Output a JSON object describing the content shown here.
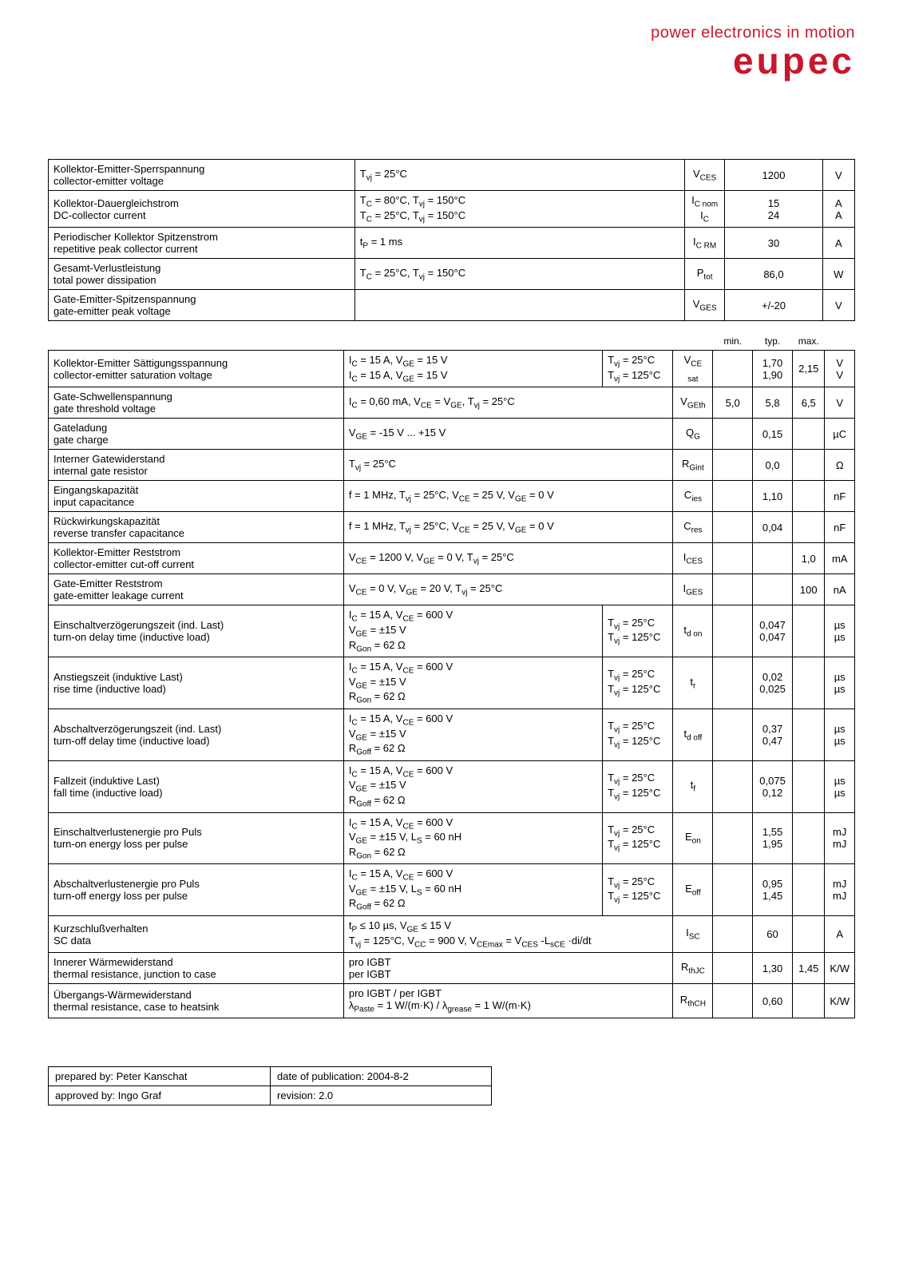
{
  "logo": {
    "line1": "power electronics in motion",
    "line2": "eupec"
  },
  "table1": [
    {
      "p_de": "Kollektor-Emitter-Sperrspannung",
      "p_en": "collector-emitter voltage",
      "cond": "T_vj = 25°C",
      "sym": "V_CES",
      "val": "1200",
      "unit": "V"
    },
    {
      "p_de": "Kollektor-Dauergleichstrom",
      "p_en": "DC-collector current",
      "cond": "T_C = 80°C, T_vj = 150°C\nT_C = 25°C, T_vj = 150°C",
      "sym": "I_C nom\nI_C",
      "val": "15\n24",
      "unit": "A\nA"
    },
    {
      "p_de": "Periodischer Kollektor Spitzenstrom",
      "p_en": "repetitive peak collector current",
      "cond": "t_P = 1 ms",
      "sym": "I_C RM",
      "val": "30",
      "unit": "A"
    },
    {
      "p_de": "Gesamt-Verlustleistung",
      "p_en": "total power dissipation",
      "cond": "T_C = 25°C, T_vj = 150°C",
      "sym": "P_tot",
      "val": "86,0",
      "unit": "W"
    },
    {
      "p_de": "Gate-Emitter-Spitzenspannung",
      "p_en": "gate-emitter peak voltage",
      "cond": "",
      "sym": "V_GES",
      "val": "+/-20",
      "unit": "V"
    }
  ],
  "table2_header": {
    "min": "min.",
    "typ": "typ.",
    "max": "max."
  },
  "table2": [
    {
      "p_de": "Kollektor-Emitter Sättigungsspannung",
      "p_en": "collector-emitter saturation voltage",
      "cond": "I_C = 15 A, V_GE = 15 V\nI_C = 15 A, V_GE = 15 V",
      "tcond": "T_vj = 25°C\nT_vj = 125°C",
      "sym": "V_CE sat",
      "min": "",
      "typ": "1,70\n1,90",
      "max": "2,15",
      "unit": "V\nV"
    },
    {
      "p_de": "Gate-Schwellenspannung",
      "p_en": "gate threshold voltage",
      "cond": "I_C = 0,60 mA, V_CE = V_GE, T_vj = 25°C",
      "tcond": "",
      "sym": "V_GEth",
      "min": "5,0",
      "typ": "5,8",
      "max": "6,5",
      "unit": "V"
    },
    {
      "p_de": "Gateladung",
      "p_en": "gate charge",
      "cond": "V_GE = -15 V ... +15 V",
      "tcond": "",
      "sym": "Q_G",
      "min": "",
      "typ": "0,15",
      "max": "",
      "unit": "µC"
    },
    {
      "p_de": "Interner Gatewiderstand",
      "p_en": "internal gate resistor",
      "cond": "T_vj = 25°C",
      "tcond": "",
      "sym": "R_Gint",
      "min": "",
      "typ": "0,0",
      "max": "",
      "unit": "Ω"
    },
    {
      "p_de": "Eingangskapazität",
      "p_en": "input capacitance",
      "cond": "f = 1 MHz, T_vj = 25°C, V_CE = 25 V, V_GE = 0 V",
      "tcond": "",
      "sym": "C_ies",
      "min": "",
      "typ": "1,10",
      "max": "",
      "unit": "nF"
    },
    {
      "p_de": "Rückwirkungskapazität",
      "p_en": "reverse transfer capacitance",
      "cond": "f = 1 MHz, T_vj = 25°C, V_CE = 25 V, V_GE = 0 V",
      "tcond": "",
      "sym": "C_res",
      "min": "",
      "typ": "0,04",
      "max": "",
      "unit": "nF"
    },
    {
      "p_de": "Kollektor-Emitter Reststrom",
      "p_en": "collector-emitter cut-off current",
      "cond": "V_CE = 1200 V, V_GE = 0 V, T_vj = 25°C",
      "tcond": "",
      "sym": "I_CES",
      "min": "",
      "typ": "",
      "max": "1,0",
      "unit": "mA"
    },
    {
      "p_de": "Gate-Emitter Reststrom",
      "p_en": "gate-emitter leakage current",
      "cond": "V_CE = 0 V, V_GE = 20 V, T_vj = 25°C",
      "tcond": "",
      "sym": "I_GES",
      "min": "",
      "typ": "",
      "max": "100",
      "unit": "nA"
    },
    {
      "p_de": "Einschaltverzögerungszeit (ind. Last)",
      "p_en": "turn-on delay time (inductive load)",
      "cond": "I_C = 15 A, V_CE = 600 V\nV_GE = ±15 V\nR_Gon = 62 Ω",
      "tcond": "T_vj = 25°C\nT_vj = 125°C",
      "sym": "t_d on",
      "min": "",
      "typ": "0,047\n0,047",
      "max": "",
      "unit": "µs\nµs"
    },
    {
      "p_de": "Anstiegszeit (induktive Last)",
      "p_en": "rise time (inductive load)",
      "cond": "I_C = 15 A, V_CE = 600 V\nV_GE = ±15 V\nR_Gon = 62 Ω",
      "tcond": "T_vj = 25°C\nT_vj = 125°C",
      "sym": "t_r",
      "min": "",
      "typ": "0,02\n0,025",
      "max": "",
      "unit": "µs\nµs"
    },
    {
      "p_de": "Abschaltverzögerungszeit (ind. Last)",
      "p_en": "turn-off delay time (inductive load)",
      "cond": "I_C = 15 A, V_CE = 600 V\nV_GE = ±15 V\nR_Goff = 62 Ω",
      "tcond": "T_vj = 25°C\nT_vj = 125°C",
      "sym": "t_d off",
      "min": "",
      "typ": "0,37\n0,47",
      "max": "",
      "unit": "µs\nµs"
    },
    {
      "p_de": "Fallzeit (induktive Last)",
      "p_en": "fall time (inductive load)",
      "cond": "I_C = 15 A, V_CE = 600 V\nV_GE = ±15 V\nR_Goff = 62 Ω",
      "tcond": "T_vj = 25°C\nT_vj = 125°C",
      "sym": "t_f",
      "min": "",
      "typ": "0,075\n0,12",
      "max": "",
      "unit": "µs\nµs"
    },
    {
      "p_de": "Einschaltverlustenergie pro Puls",
      "p_en": "turn-on energy loss per pulse",
      "cond": "I_C = 15 A, V_CE = 600 V\nV_GE = ±15 V, L_S = 60 nH\nR_Gon = 62 Ω",
      "tcond": "T_vj = 25°C\nT_vj = 125°C",
      "sym": "E_on",
      "min": "",
      "typ": "1,55\n1,95",
      "max": "",
      "unit": "mJ\nmJ"
    },
    {
      "p_de": "Abschaltverlustenergie pro Puls",
      "p_en": "turn-off energy loss per pulse",
      "cond": "I_C = 15 A, V_CE = 600 V\nV_GE = ±15 V, L_S = 60 nH\nR_Goff = 62 Ω",
      "tcond": "T_vj = 25°C\nT_vj = 125°C",
      "sym": "E_off",
      "min": "",
      "typ": "0,95\n1,45",
      "max": "",
      "unit": "mJ\nmJ"
    },
    {
      "p_de": "Kurzschlußverhalten",
      "p_en": "SC data",
      "cond": "t_P ≤ 10 µs, V_GE ≤ 15 V\nT_vj = 125°C, V_CC = 900 V, V_CEmax = V_CES -L_sCE ·di/dt",
      "tcond": "",
      "sym": "I_SC",
      "min": "",
      "typ": "60",
      "max": "",
      "unit": "A"
    },
    {
      "p_de": "Innerer Wärmewiderstand",
      "p_en": "thermal resistance, junction to case",
      "cond": "pro IGBT\nper IGBT",
      "tcond": "",
      "sym": "R_thJC",
      "min": "",
      "typ": "1,30",
      "max": "1,45",
      "unit": "K/W"
    },
    {
      "p_de": "Übergangs-Wärmewiderstand",
      "p_en": "thermal resistance, case to heatsink",
      "cond": "pro IGBT / per IGBT\nλ_Paste = 1 W/(m·K)   /   λ_grease = 1 W/(m·K)",
      "tcond": "",
      "sym": "R_thCH",
      "min": "",
      "typ": "0,60",
      "max": "",
      "unit": "K/W"
    }
  ],
  "footer": {
    "r1c1": "prepared by: Peter Kanschat",
    "r1c2": "date of publication: 2004-8-2",
    "r2c1": "approved by: Ingo Graf",
    "r2c2": "revision: 2.0"
  }
}
